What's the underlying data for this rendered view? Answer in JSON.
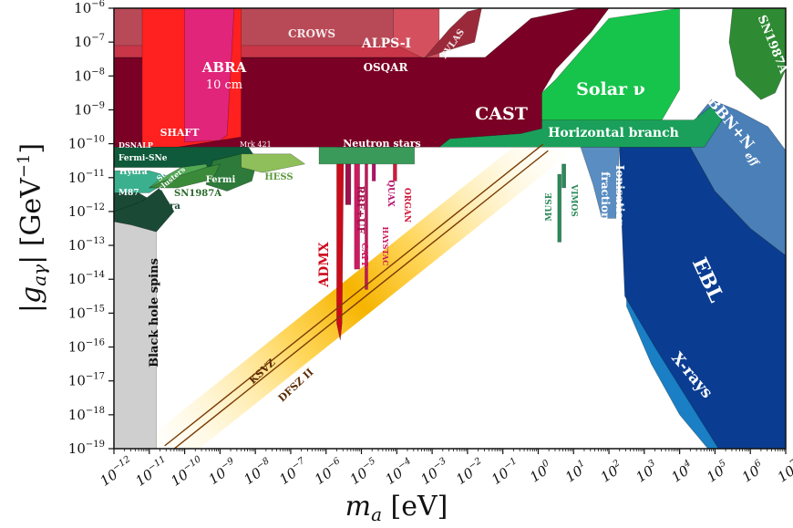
{
  "chart_data": {
    "type": "area",
    "title": "",
    "xlabel": "m_a [eV]",
    "ylabel": "|g_aγ| [GeV⁻¹]",
    "x_scale": "log",
    "y_scale": "log",
    "xlim": [
      1e-12,
      10000000.0
    ],
    "ylim": [
      1e-19,
      1e-06
    ],
    "x_ticks": [
      {
        "exp": -12,
        "label": "10",
        "sup": "−12"
      },
      {
        "exp": -11,
        "label": "10",
        "sup": "−11"
      },
      {
        "exp": -10,
        "label": "10",
        "sup": "−10"
      },
      {
        "exp": -9,
        "label": "10",
        "sup": "−9"
      },
      {
        "exp": -8,
        "label": "10",
        "sup": "−8"
      },
      {
        "exp": -7,
        "label": "10",
        "sup": "−7"
      },
      {
        "exp": -6,
        "label": "10",
        "sup": "−6"
      },
      {
        "exp": -5,
        "label": "10",
        "sup": "−5"
      },
      {
        "exp": -4,
        "label": "10",
        "sup": "−4"
      },
      {
        "exp": -3,
        "label": "10",
        "sup": "−3"
      },
      {
        "exp": -2,
        "label": "10",
        "sup": "−2"
      },
      {
        "exp": -1,
        "label": "10",
        "sup": "−1"
      },
      {
        "exp": 0,
        "label": "10",
        "sup": "0"
      },
      {
        "exp": 1,
        "label": "10",
        "sup": "1"
      },
      {
        "exp": 2,
        "label": "10",
        "sup": "2"
      },
      {
        "exp": 3,
        "label": "10",
        "sup": "3"
      },
      {
        "exp": 4,
        "label": "10",
        "sup": "4"
      },
      {
        "exp": 5,
        "label": "10",
        "sup": "5"
      },
      {
        "exp": 6,
        "label": "10",
        "sup": "6"
      },
      {
        "exp": 7,
        "label": "10",
        "sup": "7"
      }
    ],
    "y_ticks": [
      {
        "exp": -6,
        "label": "10",
        "sup": "−6"
      },
      {
        "exp": -7,
        "label": "10",
        "sup": "−7"
      },
      {
        "exp": -8,
        "label": "10",
        "sup": "−8"
      },
      {
        "exp": -9,
        "label": "10",
        "sup": "−9"
      },
      {
        "exp": -10,
        "label": "10",
        "sup": "−10"
      },
      {
        "exp": -11,
        "label": "10",
        "sup": "−11"
      },
      {
        "exp": -12,
        "label": "10",
        "sup": "−12"
      },
      {
        "exp": -13,
        "label": "10",
        "sup": "−13"
      },
      {
        "exp": -14,
        "label": "10",
        "sup": "−14"
      },
      {
        "exp": -15,
        "label": "10",
        "sup": "−15"
      },
      {
        "exp": -16,
        "label": "10",
        "sup": "−16"
      },
      {
        "exp": -17,
        "label": "10",
        "sup": "−17"
      },
      {
        "exp": -18,
        "label": "10",
        "sup": "−18"
      },
      {
        "exp": -19,
        "label": "10",
        "sup": "−19"
      }
    ],
    "regions": [
      {
        "name": "X-rays",
        "color": "#1a7fc4",
        "points": [
          [
            2.5,
            -13.2
          ],
          [
            2.5,
            -14.8
          ],
          [
            3.2,
            -16.5
          ],
          [
            4,
            -18
          ],
          [
            4.8,
            -19
          ],
          [
            7,
            -19
          ],
          [
            7,
            -13.2
          ]
        ]
      },
      {
        "name": "EBL",
        "color": "#0a3d91",
        "points": [
          [
            2.3,
            -10.1
          ],
          [
            2.35,
            -12
          ],
          [
            2.45,
            -14.5
          ],
          [
            3.3,
            -16
          ],
          [
            4.2,
            -17.5
          ],
          [
            5.1,
            -19
          ],
          [
            7,
            -19
          ],
          [
            7,
            -13.3
          ],
          [
            6,
            -12.5
          ],
          [
            5,
            -11.4
          ],
          [
            4.3,
            -10.1
          ]
        ]
      },
      {
        "name": "BBN+N_eff",
        "color": "#4a7fb8",
        "points": [
          [
            4.3,
            -10.1
          ],
          [
            5,
            -11.4
          ],
          [
            6,
            -12.5
          ],
          [
            7,
            -13.3
          ],
          [
            7,
            -10.2
          ],
          [
            6.5,
            -9.5
          ],
          [
            5.6,
            -9
          ],
          [
            4.9,
            -8.7
          ],
          [
            4.5,
            -9.2
          ]
        ]
      },
      {
        "name": "Ionisation fraction",
        "color": "#5a8ec2",
        "points": [
          [
            1.2,
            -10.1
          ],
          [
            1.55,
            -11.2
          ],
          [
            1.8,
            -12.2
          ],
          [
            2.2,
            -12.2
          ],
          [
            2.3,
            -10.1
          ]
        ]
      },
      {
        "name": "SN1987A_high",
        "color": "#2e8b33",
        "points": [
          [
            5.5,
            -6
          ],
          [
            7,
            -6
          ],
          [
            7,
            -7.8
          ],
          [
            6.7,
            -8.5
          ],
          [
            6.3,
            -8.7
          ],
          [
            5.6,
            -8
          ],
          [
            5.4,
            -7
          ]
        ]
      },
      {
        "name": "Horizontal branch",
        "color": "#1aa05a",
        "points": [
          [
            -2.8,
            -10.1
          ],
          [
            -2.5,
            -9.85
          ],
          [
            -0.5,
            -9.7
          ],
          [
            0.1,
            -9.55
          ],
          [
            0.1,
            -9.3
          ],
          [
            4.4,
            -9.3
          ],
          [
            4.9,
            -8.9
          ],
          [
            5.2,
            -9.3
          ],
          [
            4.7,
            -10.1
          ]
        ]
      },
      {
        "name": "Solar ν",
        "color": "#17c44b",
        "points": [
          [
            0.1,
            -9.3
          ],
          [
            0.1,
            -8.5
          ],
          [
            0.5,
            -8.1
          ],
          [
            2,
            -6.3
          ],
          [
            4,
            -6
          ],
          [
            4,
            -8.4
          ],
          [
            3.5,
            -9.3
          ]
        ]
      },
      {
        "name": "CAST",
        "color": "#7a0025",
        "points": [
          [
            -12,
            -10.1
          ],
          [
            -12,
            -7.45
          ],
          [
            -1.5,
            -7.45
          ],
          [
            -0.2,
            -6.3
          ],
          [
            1.2,
            -6
          ],
          [
            2,
            -6
          ],
          [
            1.5,
            -6.7
          ],
          [
            0.5,
            -7.8
          ],
          [
            0.1,
            -8.5
          ],
          [
            0.1,
            -9.55
          ],
          [
            -0.5,
            -9.7
          ],
          [
            -2.5,
            -9.85
          ],
          [
            -2.8,
            -10.1
          ]
        ]
      },
      {
        "name": "CROWS",
        "color": "#b84a57",
        "points": [
          [
            -12,
            -7.45
          ],
          [
            -12,
            -6
          ],
          [
            -4.1,
            -6
          ],
          [
            -4.1,
            -7.45
          ]
        ]
      },
      {
        "name": "ALPS-I",
        "color": "#d4505e",
        "points": [
          [
            -4.1,
            -7.45
          ],
          [
            -4.1,
            -6
          ],
          [
            -2.8,
            -6
          ],
          [
            -2.8,
            -7.45
          ]
        ]
      },
      {
        "name": "OSQAR",
        "color": "#c93648",
        "points": [
          [
            -12,
            -7.45
          ],
          [
            -12,
            -7.1
          ],
          [
            -4,
            -7.1
          ],
          [
            -3.3,
            -7.45
          ]
        ]
      },
      {
        "name": "PVLAS",
        "color": "#9a2a3a",
        "points": [
          [
            -3.2,
            -7.45
          ],
          [
            -2.5,
            -6.6
          ],
          [
            -2,
            -6.1
          ],
          [
            -1.6,
            -6
          ],
          [
            -1.8,
            -7
          ]
        ]
      },
      {
        "name": "SHAFT",
        "color": "#ff2020",
        "points": [
          [
            -11.2,
            -6
          ],
          [
            -11.2,
            -10.1
          ],
          [
            -10.2,
            -10.1
          ],
          [
            -9,
            -9.9
          ],
          [
            -8.4,
            -9.8
          ],
          [
            -8.4,
            -6
          ]
        ]
      },
      {
        "name": "ABRA 10 cm",
        "color": "#e0257a",
        "points": [
          [
            -10.0,
            -6
          ],
          [
            -10,
            -9.95
          ],
          [
            -9,
            -9.9
          ],
          [
            -8.8,
            -9.75
          ],
          [
            -8.6,
            -6
          ]
        ]
      },
      {
        "name": "Fermi-SNe",
        "color": "#0e5a3a",
        "points": [
          [
            -12,
            -10.1
          ],
          [
            -12,
            -10.7
          ],
          [
            -9.3,
            -10.7
          ],
          [
            -8,
            -10.4
          ],
          [
            -8.2,
            -10.1
          ]
        ]
      },
      {
        "name": "Hydra",
        "color": "#3bb08f",
        "points": [
          [
            -12,
            -10.8
          ],
          [
            -12,
            -11.45
          ],
          [
            -11,
            -11.45
          ],
          [
            -10.3,
            -11
          ],
          [
            -11,
            -10.8
          ]
        ]
      },
      {
        "name": "Star clusters",
        "color": "#52a853",
        "points": [
          [
            -11,
            -11.3
          ],
          [
            -10.7,
            -11.05
          ],
          [
            -10.1,
            -10.7
          ],
          [
            -9.4,
            -10.6
          ],
          [
            -9.2,
            -11
          ],
          [
            -10.2,
            -11.3
          ]
        ]
      },
      {
        "name": "Fermi",
        "color": "#2d7a3a",
        "points": [
          [
            -9.2,
            -10.5
          ],
          [
            -8.4,
            -10.3
          ],
          [
            -8,
            -10.7
          ],
          [
            -8.1,
            -11.1
          ],
          [
            -8.8,
            -11.4
          ],
          [
            -9.4,
            -11.2
          ]
        ]
      },
      {
        "name": "HESS",
        "color": "#8fbf5a",
        "points": [
          [
            -8.4,
            -10.3
          ],
          [
            -7,
            -10.3
          ],
          [
            -6.6,
            -10.6
          ],
          [
            -7.8,
            -10.85
          ],
          [
            -8.4,
            -10.7
          ]
        ]
      },
      {
        "name": "M87",
        "color": "#1a4a35",
        "points": [
          [
            -12,
            -11.45
          ],
          [
            -12,
            -12.2
          ],
          [
            -11.3,
            -12.3
          ],
          [
            -10.9,
            -11.7
          ],
          [
            -11.3,
            -11.45
          ]
        ]
      },
      {
        "name": "Chandra",
        "color": "#1a4a35",
        "points": [
          [
            -12,
            -12
          ],
          [
            -12,
            -12.3
          ],
          [
            -11.5,
            -12.4
          ],
          [
            -10.8,
            -12.6
          ],
          [
            -10.3,
            -12
          ],
          [
            -10.7,
            -11.3
          ],
          [
            -11.2,
            -11.7
          ]
        ]
      },
      {
        "name": "SN1987A",
        "color": "#3a8a3a",
        "points": [
          [
            -11,
            -11.3
          ],
          [
            -10.2,
            -11.3
          ],
          [
            -9.2,
            -11.05
          ],
          [
            -9,
            -10.6
          ],
          [
            -9.4,
            -10.7
          ],
          [
            -10.6,
            -11.1
          ]
        ]
      },
      {
        "name": "Black hole spins",
        "color": "#cfcfcf",
        "points": [
          [
            -12,
            -12.3
          ],
          [
            -11.5,
            -12.4
          ],
          [
            -10.8,
            -12.6
          ],
          [
            -10.8,
            -19
          ],
          [
            -12,
            -19
          ]
        ]
      },
      {
        "name": "ADMX",
        "color": "#cc0a1a",
        "points": [
          [
            -5.7,
            -10.1
          ],
          [
            -5.7,
            -15.3
          ],
          [
            -5.6,
            -15.8
          ],
          [
            -5.55,
            -15.3
          ],
          [
            -5.5,
            -10.1
          ]
        ]
      },
      {
        "name": "RBF+UF",
        "color": "#a0104a",
        "points": [
          [
            -5.45,
            -10.1
          ],
          [
            -5.45,
            -11.8
          ],
          [
            -5.3,
            -11.8
          ],
          [
            -5.3,
            -10.1
          ]
        ]
      },
      {
        "name": "CAPP",
        "color": "#d01a60",
        "points": [
          [
            -5.2,
            -10.1
          ],
          [
            -5.2,
            -13.7
          ],
          [
            -5.05,
            -13.7
          ],
          [
            -5.05,
            -10.1
          ]
        ]
      },
      {
        "name": "HAYSTAC",
        "color": "#c8155a",
        "points": [
          [
            -4.9,
            -10.1
          ],
          [
            -4.9,
            -14.3
          ],
          [
            -4.82,
            -14.3
          ],
          [
            -4.82,
            -10.1
          ]
        ]
      },
      {
        "name": "QUAX",
        "color": "#b5126d",
        "points": [
          [
            -4.7,
            -10.1
          ],
          [
            -4.7,
            -11.1
          ],
          [
            -4.6,
            -11.1
          ],
          [
            -4.6,
            -10.1
          ]
        ]
      },
      {
        "name": "ORGAN",
        "color": "#d11a3a",
        "points": [
          [
            -4.1,
            -10.1
          ],
          [
            -4.1,
            -11.1
          ],
          [
            -4.0,
            -11.1
          ],
          [
            -4.0,
            -10.1
          ]
        ]
      },
      {
        "name": "Neutron stars",
        "color": "#3a9a5a",
        "points": [
          [
            -6.2,
            -10.1
          ],
          [
            -6.2,
            -10.6
          ],
          [
            -3.5,
            -10.6
          ],
          [
            -3.5,
            -10.1
          ]
        ]
      },
      {
        "name": "MUSE",
        "color": "#2a8a5a",
        "points": [
          [
            0.55,
            -10.9
          ],
          [
            0.55,
            -12.9
          ],
          [
            0.65,
            -12.9
          ],
          [
            0.65,
            -10.9
          ]
        ]
      },
      {
        "name": "VIMOS",
        "color": "#2a8a5a",
        "points": [
          [
            0.67,
            -10.6
          ],
          [
            0.67,
            -11.3
          ],
          [
            0.78,
            -11.3
          ],
          [
            0.78,
            -10.6
          ]
        ]
      }
    ],
    "axion_band": {
      "color": "#f6b400",
      "ksvz_color": "#7a3a00",
      "x_start_exp": -10.5,
      "x_end_exp": 0.2,
      "y_start_exp": -19,
      "y_end_exp": -10.1
    }
  },
  "labels": {
    "crows": "CROWS",
    "alps": "ALPS-I",
    "osqar": "OSQAR",
    "pvlas": "PVLAS",
    "sn1987a_top": "SN1987A",
    "abra": "ABRA",
    "abra_size": "10 cm",
    "shaft": "SHAFT",
    "dsnalp": "DSNALP",
    "mrk421": "Mrk 421",
    "neutron_stars": "Neutron stars",
    "cast": "CAST",
    "solar": "Solar ν",
    "horizontal_branch": "Horizontal branch",
    "bbn": "BBN+N",
    "bbn_sub": "eff",
    "fermi_sne": "Fermi-SNe",
    "hydra": "Hydra",
    "star": "Star",
    "clusters": "clusters",
    "fermi": "Fermi",
    "hess": "HESS",
    "m87": "M87",
    "sn1987a_low": "SN1987A",
    "chandra": "Chandra",
    "rbf": "RBF+UF",
    "quax": "QUAX",
    "organ": "ORGAN",
    "haystac": "HAYSTAC",
    "capp": "CAPP",
    "admx": "ADMX",
    "muse": "MUSE",
    "vimos": "VIMOS",
    "ionisation": "Ionisation",
    "fraction": "fraction",
    "ebl": "EBL",
    "xrays": "X-rays",
    "black_hole": "Black hole spins",
    "ksvz": "KSVZ",
    "dfsz": "DFSZ II"
  }
}
